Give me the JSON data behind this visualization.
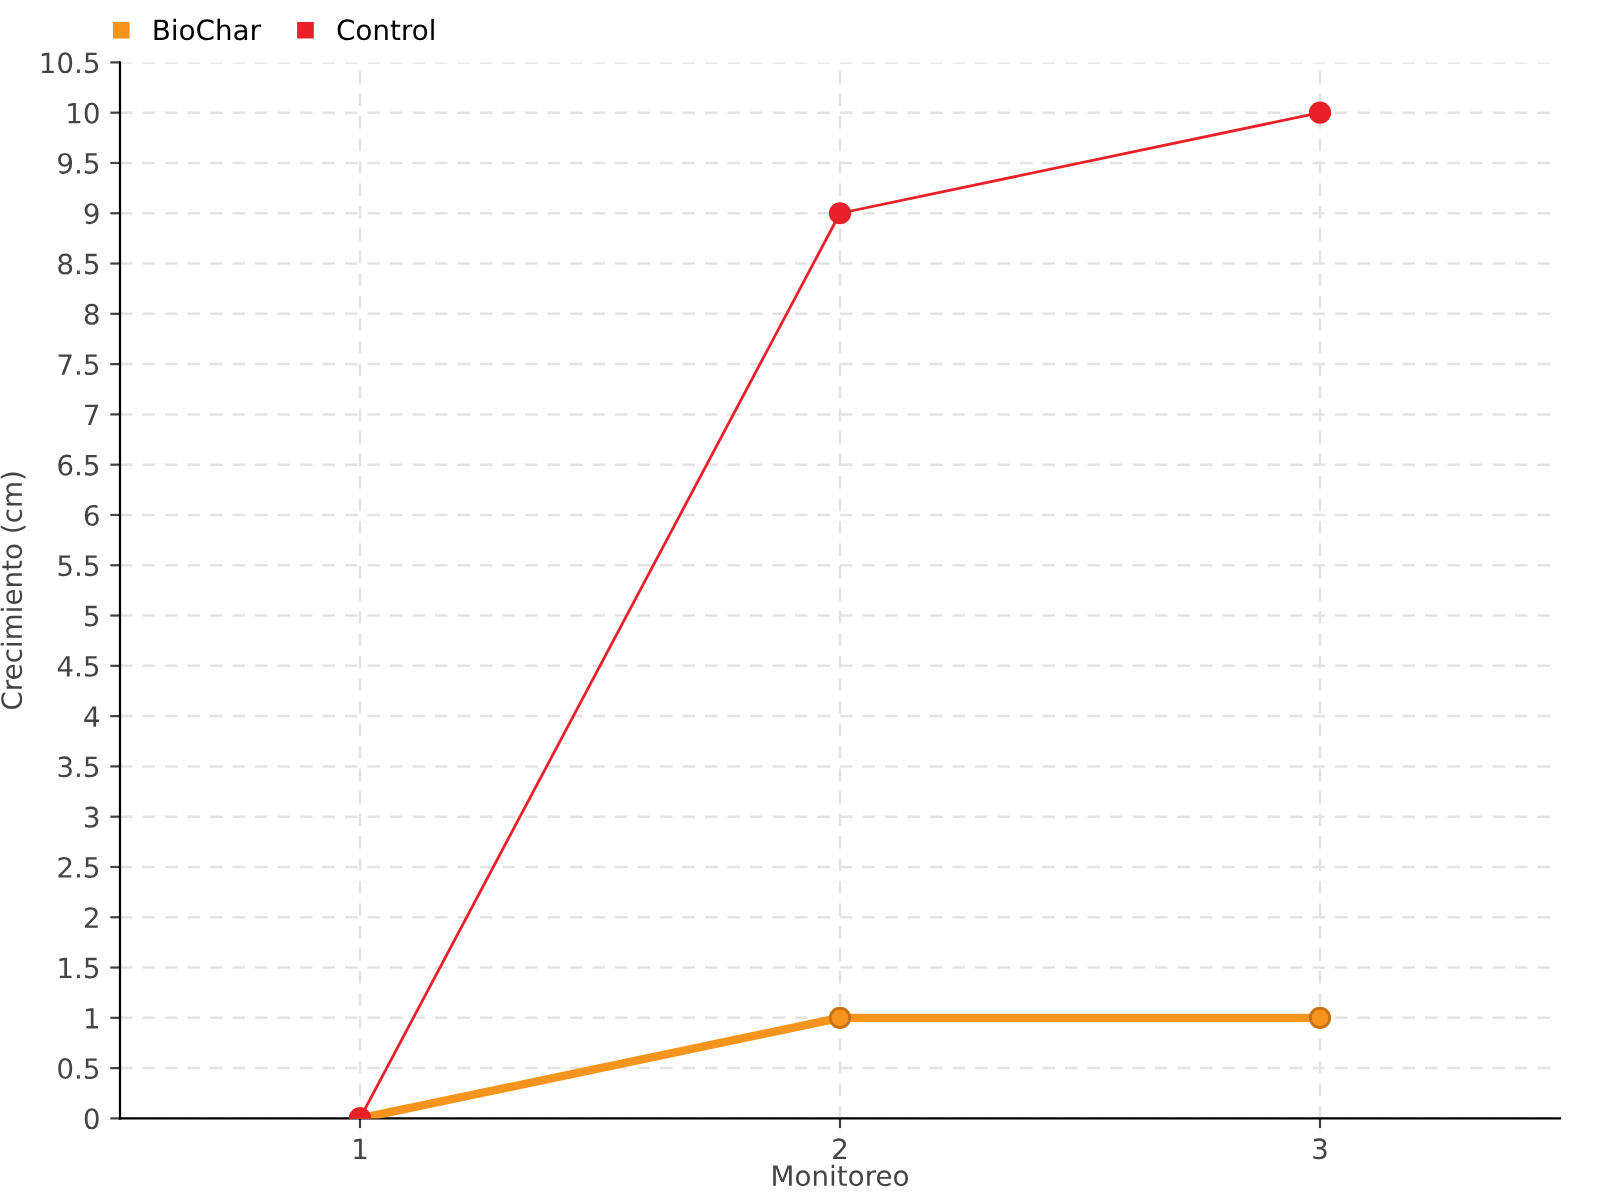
{
  "chart_data": {
    "type": "line",
    "xlabel": "Monitoreo",
    "ylabel": "Crecimiento (cm)",
    "categories": [
      "1",
      "2",
      "3"
    ],
    "series": [
      {
        "name": "BioChar",
        "color": "#f7941d",
        "values": [
          0,
          1,
          1
        ]
      },
      {
        "name": "Control",
        "color": "#e8202a",
        "values": [
          0,
          9,
          10
        ]
      }
    ],
    "ylim": [
      0,
      10.5
    ],
    "yticks": [
      0,
      0.5,
      1,
      1.5,
      2,
      2.5,
      3,
      3.5,
      4,
      4.5,
      5,
      5.5,
      6,
      6.5,
      7,
      7.5,
      8,
      8.5,
      9,
      9.5,
      10,
      10.5
    ],
    "grid": true,
    "legend": "top left",
    "marker": "circle",
    "line_style": "solid"
  }
}
